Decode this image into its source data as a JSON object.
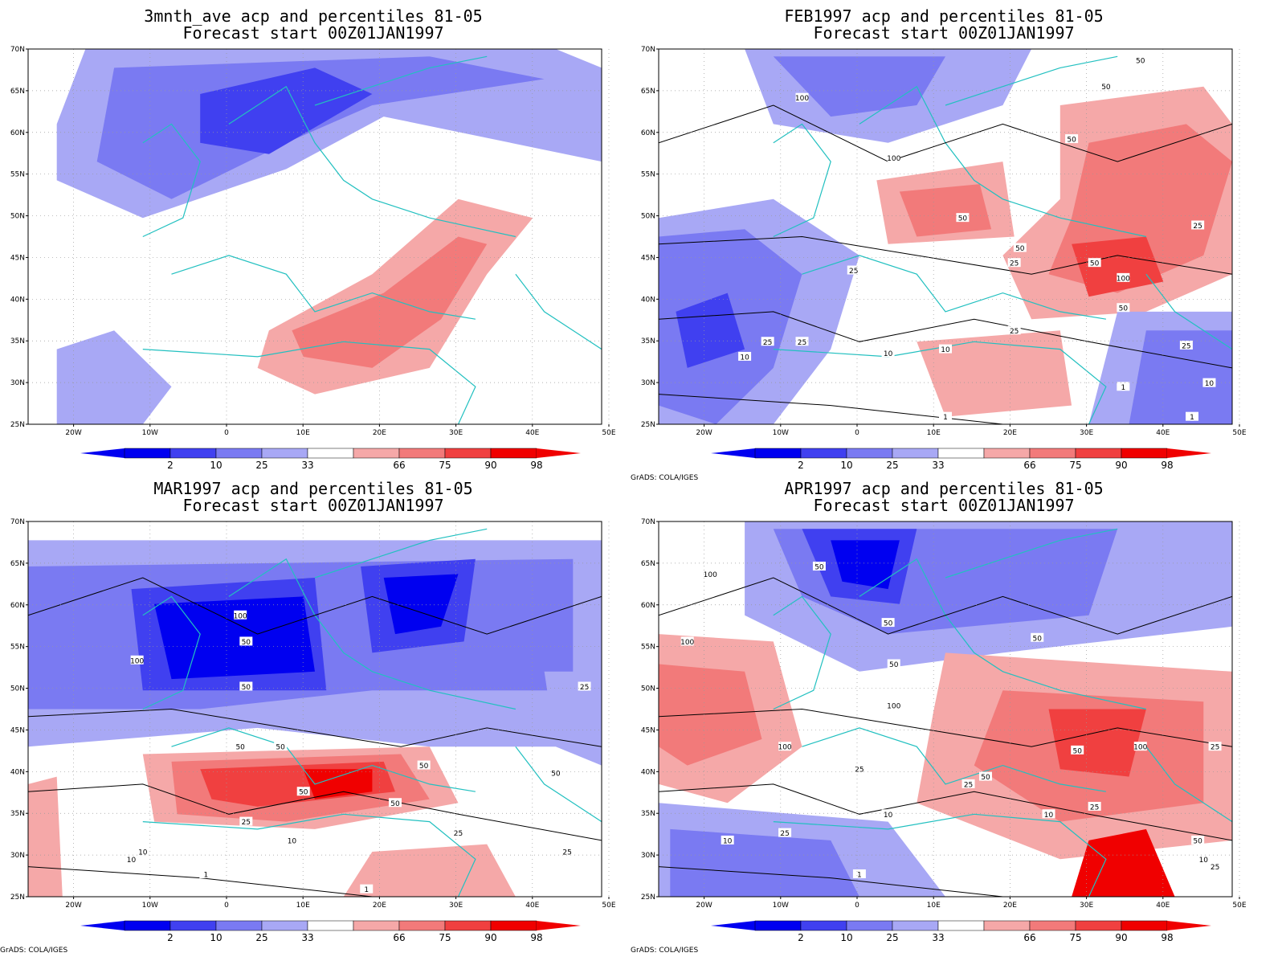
{
  "colors": {
    "p2": "#0000f0",
    "p10": "#4040f0",
    "p25": "#7a7af2",
    "p33": "#a8a8f5",
    "p66": "#f5a8a8",
    "p75": "#f27a7a",
    "p90": "#f04040",
    "p98": "#f00000",
    "coast": "#22c0c0",
    "contour": "#000000"
  },
  "axes": {
    "lat_labels": [
      "70N",
      "65N",
      "60N",
      "55N",
      "50N",
      "45N",
      "40N",
      "35N",
      "30N",
      "25N"
    ],
    "lon_labels": [
      "20W",
      "10W",
      "0",
      "10E",
      "20E",
      "30E",
      "40E",
      "50E"
    ]
  },
  "colorbar": {
    "labels": [
      "2",
      "10",
      "25",
      "33",
      "66",
      "75",
      "90",
      "98"
    ]
  },
  "credit": "GrADS: COLA/IGES",
  "panels": [
    {
      "title_line1": "3mnth_ave acp and percentiles 81-05",
      "title_line2": "Forecast start 00Z01JAN1997",
      "contour_labels": []
    },
    {
      "title_line1": "FEB1997 acp and percentiles 81-05",
      "title_line2": "Forecast start 00Z01JAN1997",
      "contour_labels": [
        "100",
        "100",
        "50",
        "50",
        "50",
        "50",
        "25",
        "50",
        "25",
        "100",
        "50",
        "25",
        "25",
        "10",
        "25",
        "10",
        "25",
        "10",
        "1",
        "1",
        "10",
        "1",
        "50",
        "25"
      ]
    },
    {
      "title_line1": "MAR1997 acp and percentiles 81-05",
      "title_line2": "Forecast start 00Z01JAN1997",
      "contour_labels": [
        "100",
        "50",
        "100",
        "50",
        "50",
        "50",
        "50",
        "50",
        "50",
        "25",
        "25",
        "10",
        "10",
        "10",
        "1",
        "1",
        "25",
        "50",
        "25"
      ]
    },
    {
      "title_line1": "APR1997 acp and percentiles 81-05",
      "title_line2": "Forecast start 00Z01JAN1997",
      "contour_labels": [
        "100",
        "50",
        "50",
        "100",
        "50",
        "50",
        "100",
        "100",
        "50",
        "25",
        "50",
        "25",
        "100",
        "10",
        "10",
        "25",
        "10",
        "1",
        "25",
        "50",
        "10",
        "25",
        "25"
      ]
    }
  ]
}
